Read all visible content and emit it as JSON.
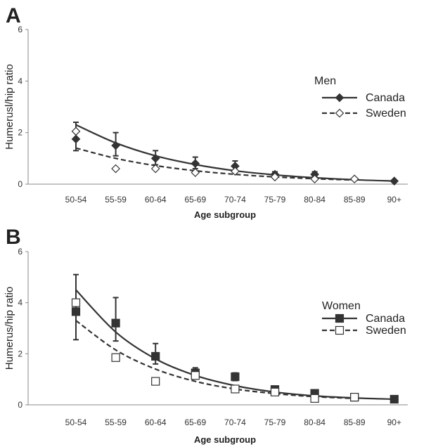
{
  "chart_data": [
    {
      "type": "line",
      "panel_label": "A",
      "ylabel": "Humerusl/hip ratio",
      "xlabel": "Age subgroup",
      "ylim": [
        0,
        6
      ],
      "yticks": [
        0,
        2,
        4,
        6
      ],
      "categories": [
        "50-54",
        "55-59",
        "60-64",
        "65-69",
        "70-74",
        "75-79",
        "80-84",
        "85-89",
        "90+"
      ],
      "legend_title": "Men",
      "legend_position": "right",
      "series": [
        {
          "name": "Canada",
          "marker": "filled-diamond",
          "line": "solid",
          "values": [
            1.75,
            1.5,
            1.0,
            0.8,
            0.7,
            0.38,
            0.38,
            null,
            0.12
          ],
          "error_low": [
            1.3,
            1.1,
            0.75,
            0.6,
            0.5,
            0.28,
            0.28,
            null,
            null
          ],
          "error_high": [
            2.4,
            2.0,
            1.3,
            1.05,
            0.9,
            0.48,
            0.48,
            null,
            null
          ],
          "fit": [
            2.3,
            1.6,
            1.1,
            0.76,
            0.52,
            0.36,
            0.25,
            0.17,
            0.12
          ]
        },
        {
          "name": "Sweden",
          "marker": "open-diamond",
          "line": "dashed",
          "values": [
            2.05,
            0.6,
            0.6,
            0.45,
            0.5,
            0.28,
            0.2,
            0.2,
            null
          ],
          "fit": [
            1.4,
            1.0,
            0.72,
            0.52,
            0.38,
            0.28,
            0.21,
            0.16,
            null
          ]
        }
      ]
    },
    {
      "type": "line",
      "panel_label": "B",
      "ylabel": "Humerus/hip ratio",
      "xlabel": "Age subgroup",
      "ylim": [
        0,
        6
      ],
      "yticks": [
        0,
        2,
        4,
        6
      ],
      "categories": [
        "50-54",
        "55-59",
        "60-64",
        "65-69",
        "70-74",
        "75-79",
        "80-84",
        "85-89",
        "90+"
      ],
      "legend_title": "Women",
      "legend_position": "right",
      "series": [
        {
          "name": "Canada",
          "marker": "filled-square",
          "line": "solid",
          "values": [
            3.65,
            3.2,
            1.9,
            1.25,
            1.1,
            0.6,
            0.45,
            0.3,
            0.22
          ],
          "error_low": [
            2.55,
            2.5,
            1.6,
            1.05,
            0.95,
            0.5,
            0.35,
            null,
            null
          ],
          "error_high": [
            5.1,
            4.2,
            2.4,
            1.45,
            1.25,
            0.7,
            0.55,
            null,
            null
          ],
          "fit": [
            4.5,
            2.85,
            1.8,
            1.15,
            0.75,
            0.5,
            0.35,
            0.27,
            0.22
          ]
        },
        {
          "name": "Sweden",
          "marker": "open-square",
          "line": "dashed",
          "values": [
            4.0,
            1.85,
            0.92,
            1.15,
            0.62,
            0.5,
            0.25,
            0.3,
            null
          ],
          "fit": [
            3.3,
            2.15,
            1.4,
            0.92,
            0.62,
            0.44,
            0.32,
            0.25,
            null
          ]
        }
      ]
    }
  ]
}
